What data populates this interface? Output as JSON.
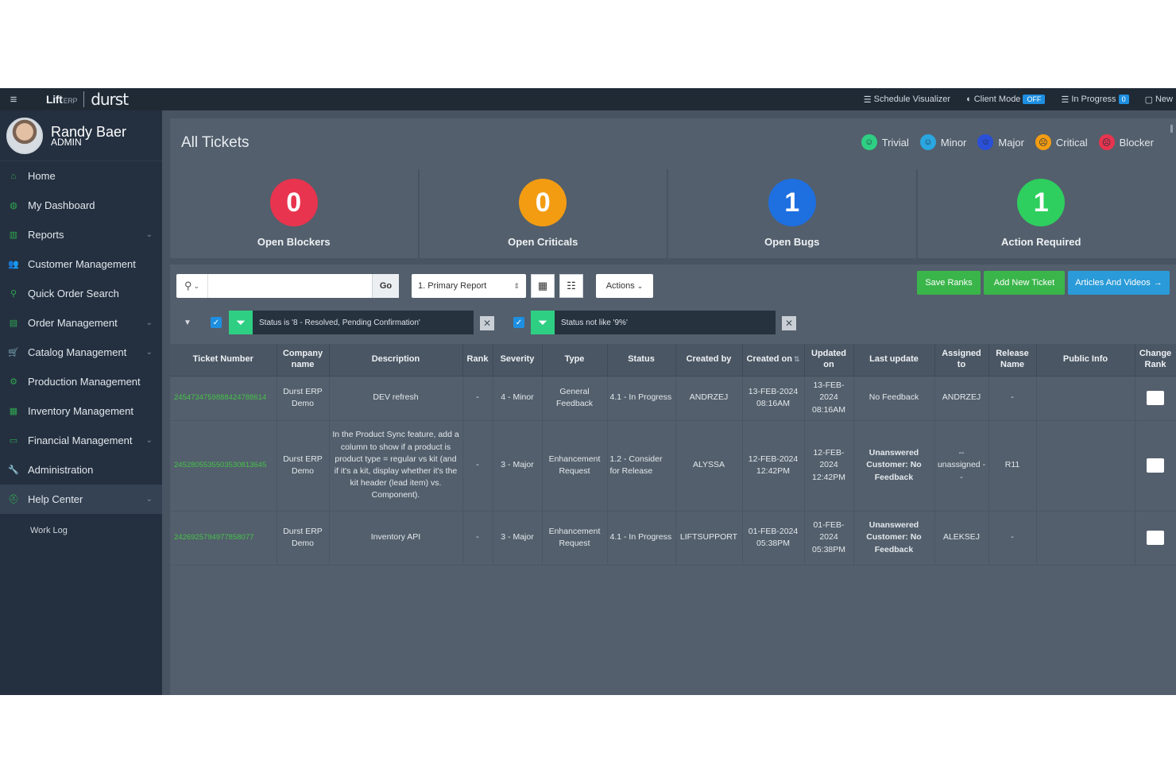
{
  "topbar": {
    "logo_lift": "Lift",
    "logo_lift_suffix": "ERP",
    "logo_durst": "durst",
    "schedule_visualizer": "Schedule Visualizer",
    "client_mode": "Client Mode",
    "client_mode_state": "OFF",
    "in_progress": "In Progress",
    "in_progress_count": "0",
    "new_label": "New"
  },
  "user": {
    "name": "Randy Baer",
    "role": "ADMIN"
  },
  "sidebar": {
    "items": [
      {
        "label": "Home",
        "icon": "home-icon",
        "chevron": false
      },
      {
        "label": "My Dashboard",
        "icon": "dashboard-icon",
        "chevron": false
      },
      {
        "label": "Reports",
        "icon": "reports-icon",
        "chevron": true
      },
      {
        "label": "Customer Management",
        "icon": "customers-icon",
        "chevron": false
      },
      {
        "label": "Quick Order Search",
        "icon": "search-icon",
        "chevron": false
      },
      {
        "label": "Order Management",
        "icon": "orders-icon",
        "chevron": true
      },
      {
        "label": "Catalog Management",
        "icon": "cart-icon",
        "chevron": true
      },
      {
        "label": "Production Management",
        "icon": "gears-icon",
        "chevron": false
      },
      {
        "label": "Inventory Management",
        "icon": "inventory-icon",
        "chevron": false
      },
      {
        "label": "Financial Management",
        "icon": "money-icon",
        "chevron": true
      },
      {
        "label": "Administration",
        "icon": "wrench-icon",
        "chevron": false
      },
      {
        "label": "Help Center",
        "icon": "help-icon",
        "chevron": true
      },
      {
        "label": "Work Log",
        "icon": "",
        "chevron": false
      }
    ]
  },
  "page": {
    "title": "All Tickets",
    "legend": [
      {
        "label": "Trivial",
        "color": "#2ecf83"
      },
      {
        "label": "Minor",
        "color": "#2aa6e0"
      },
      {
        "label": "Major",
        "color": "#2a4fd8"
      },
      {
        "label": "Critical",
        "color": "#f39c12"
      },
      {
        "label": "Blocker",
        "color": "#e8344e"
      }
    ],
    "stats": [
      {
        "value": "0",
        "label": "Open Blockers",
        "color": "#e8344e"
      },
      {
        "value": "0",
        "label": "Open Criticals",
        "color": "#f39c12"
      },
      {
        "value": "1",
        "label": "Open Bugs",
        "color": "#1e6fe0"
      },
      {
        "value": "1",
        "label": "Action Required",
        "color": "#2ecf5e"
      }
    ]
  },
  "toolbar": {
    "search_value": "",
    "go_label": "Go",
    "report_label": "1. Primary Report",
    "actions_label": "Actions",
    "save_ranks": "Save Ranks",
    "add_new_ticket": "Add New Ticket",
    "articles_videos": "Articles And Videos"
  },
  "colors": {
    "save_ranks": "#3ab54a",
    "add_new_ticket": "#3ab54a",
    "articles_videos": "#2a9bd8"
  },
  "filters": [
    {
      "text": "Status is '8 - Resolved, Pending Confirmation'"
    },
    {
      "text": "Status not like '9%'"
    }
  ],
  "table": {
    "headers": [
      "Ticket Number",
      "Company name",
      "Description",
      "Rank",
      "Severity",
      "Type",
      "Status",
      "Created by",
      "Created on",
      "Updated on",
      "Last update",
      "Assigned to",
      "Release Name",
      "Public Info",
      "Change Rank"
    ],
    "rows": [
      {
        "ticket": "2454734759888424788614",
        "company": "Durst ERP Demo",
        "description": "DEV refresh",
        "rank": "-",
        "severity": "4 - Minor",
        "type": "General Feedback",
        "status": "4.1 - In Progress",
        "created_by": "ANDRZEJ",
        "created_on": "13-FEB-2024 08:16AM",
        "updated_on": "13-FEB-2024 08:16AM",
        "last_update": "No Feedback",
        "last_update_bold": false,
        "assigned_to": "ANDRZEJ",
        "release": "-",
        "public_info": ""
      },
      {
        "ticket": "2452805535503530813645",
        "company": "Durst ERP Demo",
        "description": "In the Product Sync feature, add a column to show if a product is product type = regular vs kit (and if it's a kit, display whether it's the kit header (lead item) vs. Component).",
        "rank": "-",
        "severity": "3 - Major",
        "type": "Enhancement Request",
        "status": "1.2 - Consider for Release",
        "created_by": "ALYSSA",
        "created_on": "12-FEB-2024 12:42PM",
        "updated_on": "12-FEB-2024 12:42PM",
        "last_update": "Unanswered Customer: No Feedback",
        "last_update_bold": true,
        "assigned_to": "-- unassigned --",
        "release": "R11",
        "public_info": ""
      },
      {
        "ticket": "2426925794977858077",
        "company": "Durst ERP Demo",
        "description": "Inventory API",
        "rank": "-",
        "severity": "3 - Major",
        "type": "Enhancement Request",
        "status": "4.1 - In Progress",
        "created_by": "LIFTSUPPORT",
        "created_on": "01-FEB-2024 05:38PM",
        "updated_on": "01-FEB-2024 05:38PM",
        "last_update": "Unanswered Customer: No Feedback",
        "last_update_bold": true,
        "assigned_to": "ALEKSEJ",
        "release": "-",
        "public_info": ""
      }
    ]
  }
}
